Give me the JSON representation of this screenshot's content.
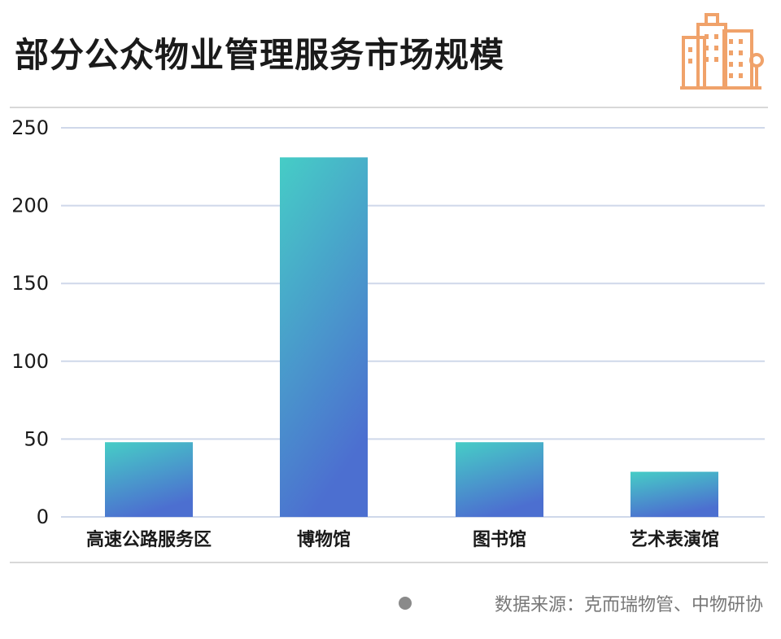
{
  "header": {
    "title": "部分公众物业管理服务市场规模",
    "logo_icon": "building-icon"
  },
  "colors": {
    "bar_gradient_top": "#46cdc6",
    "bar_gradient_bottom": "#4c6fd0",
    "grid": "#cfd8ea",
    "logo": "#f0a26a"
  },
  "chart_data": {
    "type": "bar",
    "title": "部分公众物业管理服务市场规模",
    "categories": [
      "高速公路服务区",
      "博物馆",
      "图书馆",
      "艺术表演馆"
    ],
    "values": [
      48,
      231,
      48,
      29
    ],
    "xlabel": "",
    "ylabel": "",
    "ylim": [
      0,
      250
    ],
    "yticks": [
      0,
      50,
      100,
      150,
      200,
      250
    ],
    "grid": true
  },
  "footer": {
    "source": "数据来源：克而瑞物管、中物研协"
  }
}
